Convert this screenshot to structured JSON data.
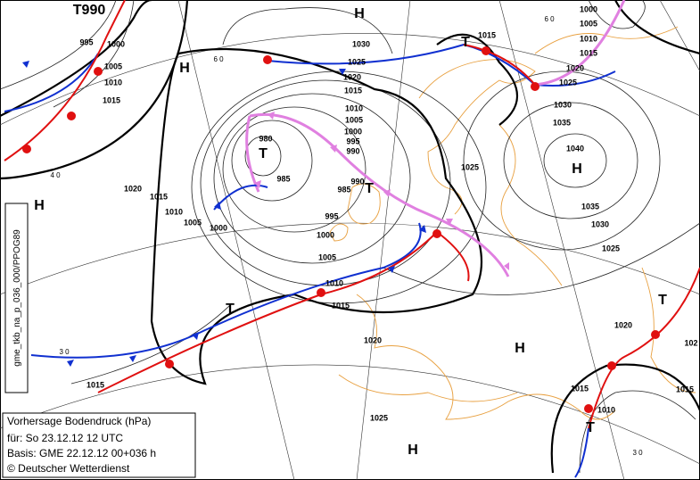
{
  "info": {
    "title": "Vorhersage Bodendruck (hPa)",
    "valid": "für:  So 23.12.12  12 UTC",
    "basis": "Basis: GME  22.12.12 00+036 h",
    "copyright": "© Deutscher Wetterdienst"
  },
  "side_label": "gme_tkb_na_p_036_000/PPOG89",
  "centers": [
    "T990",
    "H",
    "H",
    "H",
    "H",
    "H",
    "H",
    "T",
    "T",
    "T",
    "T",
    "T",
    "T"
  ],
  "isobar_labels": [
    "995",
    "1000",
    "1005",
    "1010",
    "1015",
    "1030",
    "1025",
    "1020",
    "1015",
    "1010",
    "1005",
    "1000",
    "995",
    "990",
    "980",
    "985",
    "985",
    "990",
    "995",
    "1000",
    "1005",
    "1010",
    "1015",
    "1020",
    "1015",
    "1010",
    "1005",
    "1000",
    "1015",
    "1000",
    "1005",
    "1010",
    "1015",
    "1020",
    "1025",
    "1030",
    "1035",
    "1040",
    "1035",
    "1030",
    "1025",
    "1025",
    "1020",
    "1025",
    "1020",
    "102",
    "1015",
    "1015",
    "1010",
    "1015"
  ],
  "lat_labels": [
    "6 0",
    "6 0",
    "4 0",
    "3 0",
    "3 0"
  ]
}
